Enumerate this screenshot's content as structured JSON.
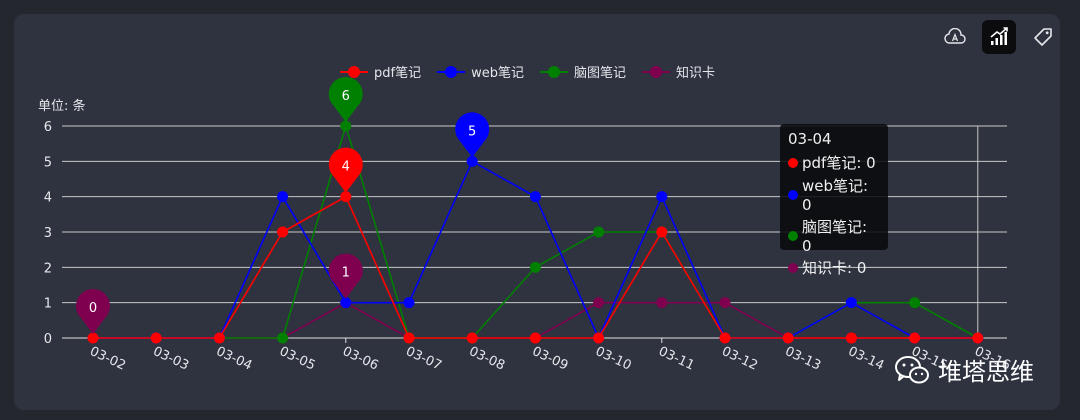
{
  "toolbar": {
    "icons": [
      "font-icon",
      "chart-icon",
      "tag-icon"
    ],
    "active": "chart-icon"
  },
  "unit_label": "单位: 条",
  "watermark": {
    "text": "堆塔思维",
    "icon": "wechat-icon"
  },
  "tooltip": {
    "title": "03-04",
    "rows": [
      {
        "label": "pdf笔记: 0",
        "color": "#ff0000"
      },
      {
        "label": "web笔记: 0",
        "color": "#0000ff"
      },
      {
        "label": "脑图笔记: 0",
        "color": "#008000"
      },
      {
        "label": "知识卡: 0",
        "color": "#800050"
      }
    ]
  },
  "chart_data": {
    "type": "line",
    "categories": [
      "03-02",
      "03-03",
      "03-04",
      "03-05",
      "03-06",
      "03-07",
      "03-08",
      "03-09",
      "03-10",
      "03-11",
      "03-12",
      "03-13",
      "03-14",
      "03-15",
      "03-16"
    ],
    "ylabel": "单位: 条",
    "ylim": [
      0,
      6
    ],
    "yticks": [
      0,
      1,
      2,
      3,
      4,
      5,
      6
    ],
    "grid": true,
    "legend_position": "top-center",
    "series": [
      {
        "name": "pdf笔记",
        "color": "#ff0000",
        "values": [
          0,
          0,
          0,
          3,
          4,
          0,
          0,
          0,
          0,
          3,
          0,
          0,
          0,
          0,
          0
        ]
      },
      {
        "name": "web笔记",
        "color": "#0000ff",
        "values": [
          0,
          0,
          0,
          4,
          1,
          1,
          5,
          4,
          0,
          4,
          0,
          0,
          1,
          0,
          0
        ]
      },
      {
        "name": "脑图笔记",
        "color": "#008000",
        "values": [
          0,
          0,
          0,
          0,
          6,
          0,
          0,
          2,
          3,
          3,
          0,
          0,
          1,
          1,
          0
        ]
      },
      {
        "name": "知识卡",
        "color": "#800050",
        "values": [
          0,
          0,
          0,
          0,
          1,
          0,
          0,
          0,
          1,
          1,
          1,
          0,
          0,
          0,
          0
        ]
      }
    ],
    "markers": [
      {
        "series": "知识卡",
        "category": "03-02",
        "value": 0
      },
      {
        "series": "脑图笔记",
        "category": "03-06",
        "value": 6
      },
      {
        "series": "pdf笔记",
        "category": "03-06",
        "value": 4
      },
      {
        "series": "知识卡",
        "category": "03-06",
        "value": 1
      },
      {
        "series": "web笔记",
        "category": "03-08",
        "value": 5
      }
    ],
    "highlight_category": "03-16"
  }
}
